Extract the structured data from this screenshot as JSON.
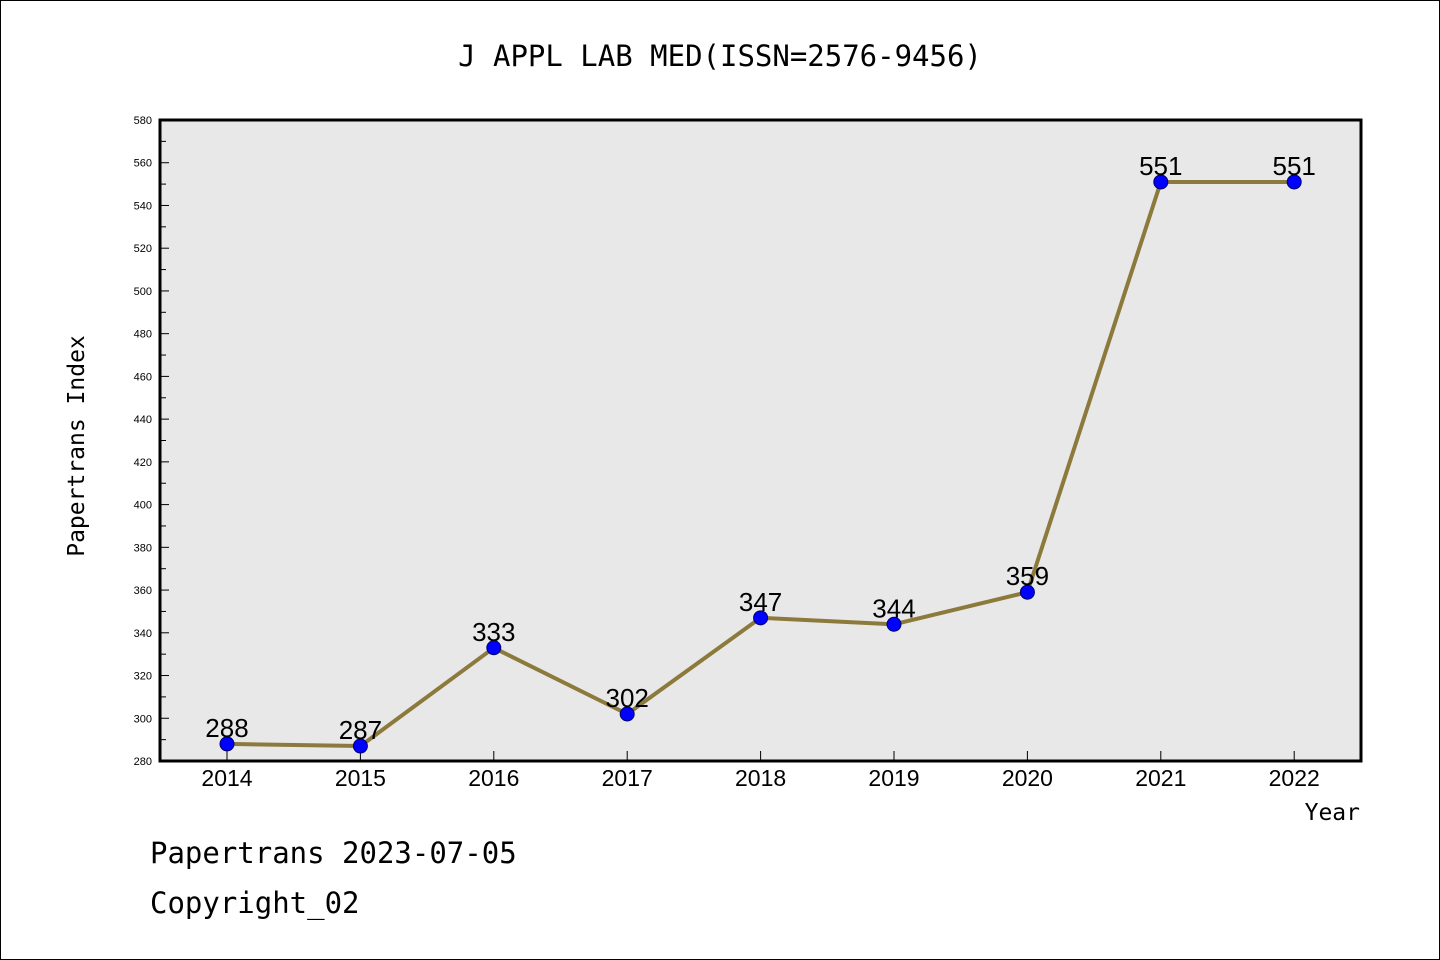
{
  "chart_data": {
    "type": "line",
    "title": "J APPL LAB MED(ISSN=2576-9456)",
    "xlabel": "Year",
    "ylabel": "Papertrans Index",
    "categories": [
      "2014",
      "2015",
      "2016",
      "2017",
      "2018",
      "2019",
      "2020",
      "2021",
      "2022"
    ],
    "series": [
      {
        "values": [
          288,
          287,
          333,
          302,
          347,
          344,
          359,
          551,
          551
        ]
      }
    ],
    "data_labels": [
      "288",
      "287",
      "333",
      "302",
      "347",
      "344",
      "359",
      "551",
      "551"
    ],
    "ylim": [
      280,
      580
    ],
    "yticks": [
      "280",
      "300",
      "320",
      "340",
      "360",
      "380",
      "400",
      "420",
      "440",
      "460",
      "480",
      "500",
      "520",
      "540",
      "560",
      "580"
    ],
    "grid": false,
    "legend": "none",
    "colors": {
      "line": "#8C7A3C",
      "marker": "#0000FF",
      "plot_background": "#E8E8E8"
    }
  },
  "footer": {
    "date_line": "Papertrans 2023-07-05",
    "copyright": "Copyright_02"
  }
}
